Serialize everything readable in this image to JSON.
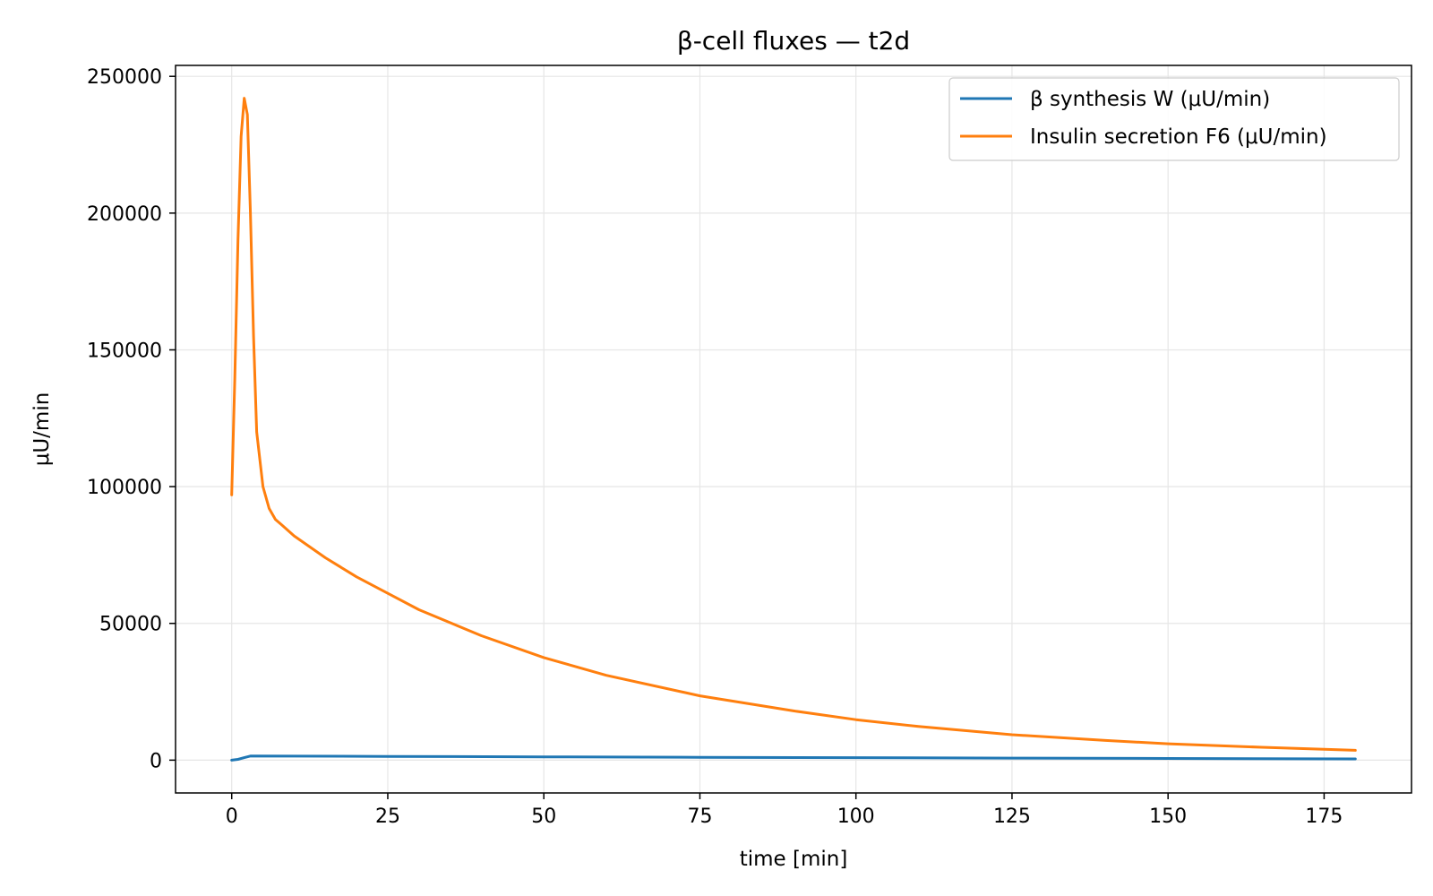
{
  "chart_data": {
    "type": "line",
    "title": "β-cell fluxes — t2d",
    "xlabel": "time [min]",
    "ylabel": "μU/min",
    "xlim": [
      -9,
      189
    ],
    "ylim": [
      -12000,
      254000
    ],
    "xticks": [
      0,
      25,
      50,
      75,
      100,
      125,
      150,
      175
    ],
    "yticks": [
      0,
      50000,
      100000,
      150000,
      200000,
      250000
    ],
    "grid": true,
    "legend_position": "top-right",
    "series": [
      {
        "name": "β synthesis W (μU/min)",
        "color": "#1f77b4",
        "points": [
          [
            0,
            0
          ],
          [
            1,
            300
          ],
          [
            2,
            900
          ],
          [
            3,
            1500
          ],
          [
            10,
            1450
          ],
          [
            25,
            1350
          ],
          [
            50,
            1200
          ],
          [
            75,
            1050
          ],
          [
            100,
            900
          ],
          [
            125,
            750
          ],
          [
            150,
            600
          ],
          [
            180,
            450
          ]
        ]
      },
      {
        "name": "Insulin secretion F6 (μU/min)",
        "color": "#ff7f0e",
        "points": [
          [
            0,
            97000
          ],
          [
            0.5,
            140000
          ],
          [
            1,
            190000
          ],
          [
            1.5,
            228000
          ],
          [
            2,
            242000
          ],
          [
            2.5,
            236000
          ],
          [
            3,
            200000
          ],
          [
            3.5,
            155000
          ],
          [
            4,
            120000
          ],
          [
            5,
            100000
          ],
          [
            6,
            92000
          ],
          [
            7,
            88000
          ],
          [
            8,
            86000
          ],
          [
            10,
            82000
          ],
          [
            15,
            74000
          ],
          [
            20,
            67000
          ],
          [
            25,
            61000
          ],
          [
            30,
            55000
          ],
          [
            40,
            45500
          ],
          [
            50,
            37500
          ],
          [
            60,
            31000
          ],
          [
            75,
            23500
          ],
          [
            90,
            18000
          ],
          [
            100,
            14800
          ],
          [
            110,
            12300
          ],
          [
            125,
            9300
          ],
          [
            140,
            7200
          ],
          [
            150,
            6000
          ],
          [
            165,
            4700
          ],
          [
            180,
            3600
          ]
        ]
      }
    ]
  }
}
